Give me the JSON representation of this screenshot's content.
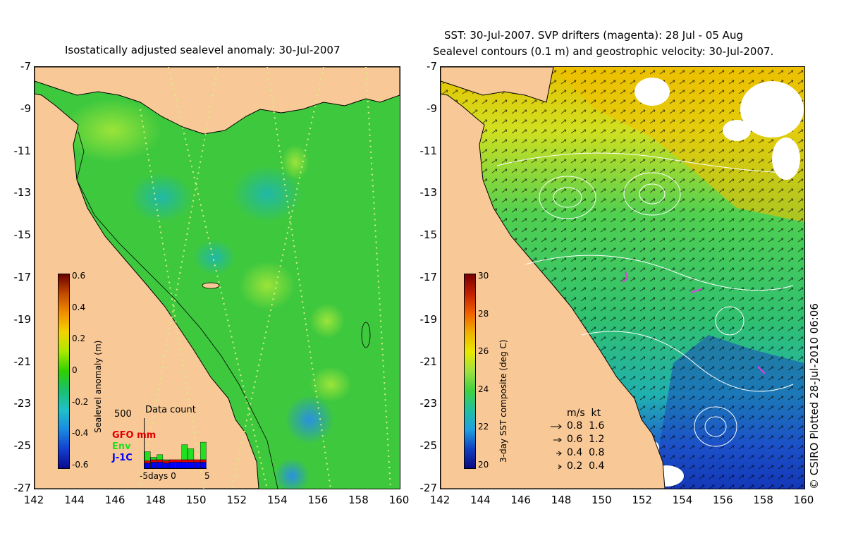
{
  "left_panel": {
    "title": "Isostatically adjusted sealevel anomaly: 30-Jul-2007",
    "colorbar": {
      "label": "Sealevel anomaly (m)",
      "ticks": [
        "0.6",
        "0.4",
        "0.2",
        "0",
        "-0.2",
        "-0.4",
        "-0.6"
      ],
      "colors": [
        "#6b0000",
        "#c24a00",
        "#f09000",
        "#f2d400",
        "#a8e800",
        "#2fd000",
        "#1ac070",
        "#20c0c8",
        "#1a8ae0",
        "#1440d0",
        "#0a0a90"
      ]
    },
    "data_count": {
      "title": "Data count",
      "ymax": "500",
      "legend": [
        {
          "label": "GFO mm",
          "color": "#e00000"
        },
        {
          "label": "Env",
          "color": "#20e020"
        },
        {
          "label": "J-1C",
          "color": "#0000ff"
        }
      ],
      "xlabel": "-5days 0",
      "xlabel_right": "5",
      "bars": [
        {
          "jason": 0.1,
          "env": 0.18,
          "gfo": 0.05
        },
        {
          "jason": 0.12,
          "env": 0.05,
          "gfo": 0.05
        },
        {
          "jason": 0.12,
          "env": 0.1,
          "gfo": 0.05
        },
        {
          "jason": 0.1,
          "env": 0.02,
          "gfo": 0.05
        },
        {
          "jason": 0.12,
          "env": 0.0,
          "gfo": 0.05
        },
        {
          "jason": 0.12,
          "env": 0.0,
          "gfo": 0.05
        },
        {
          "jason": 0.12,
          "env": 0.3,
          "gfo": 0.05
        },
        {
          "jason": 0.12,
          "env": 0.22,
          "gfo": 0.05
        },
        {
          "jason": 0.12,
          "env": 0.0,
          "gfo": 0.05
        },
        {
          "jason": 0.12,
          "env": 0.35,
          "gfo": 0.05
        }
      ]
    }
  },
  "right_panel": {
    "title_line1": "SST: 30-Jul-2007. SVP drifters (magenta): 28 Jul - 05 Aug",
    "title_line2": "Sealevel contours (0.1 m) and geostrophic velocity: 30-Jul-2007.",
    "colorbar": {
      "label": "3-day SST composite (deg C)",
      "ticks": [
        "30",
        "28",
        "26",
        "24",
        "22",
        "20"
      ],
      "colors": [
        "#7a0000",
        "#c02000",
        "#f06000",
        "#f0b000",
        "#e8e800",
        "#a0e040",
        "#40d040",
        "#20c0a0",
        "#20a0e0",
        "#1040c0",
        "#0a0a80"
      ]
    },
    "velocity_legend": {
      "header": "m/s  kt",
      "rows": [
        "0.8  1.6",
        "0.6  1.2",
        "0.4  0.8",
        "0.2  0.4"
      ]
    },
    "credit": "© CSIRO Plotted 28-Jul-2010 06:06"
  },
  "axes": {
    "y_ticks": [
      "-7",
      "-9",
      "-11",
      "-13",
      "-15",
      "-17",
      "-19",
      "-21",
      "-23",
      "-25",
      "-27"
    ],
    "x_ticks": [
      "142",
      "144",
      "146",
      "148",
      "150",
      "152",
      "154",
      "156",
      "158",
      "160"
    ]
  },
  "colors": {
    "land": "#f8c896",
    "ocean_left": "#3ec83e",
    "contour": "#ffffff"
  }
}
